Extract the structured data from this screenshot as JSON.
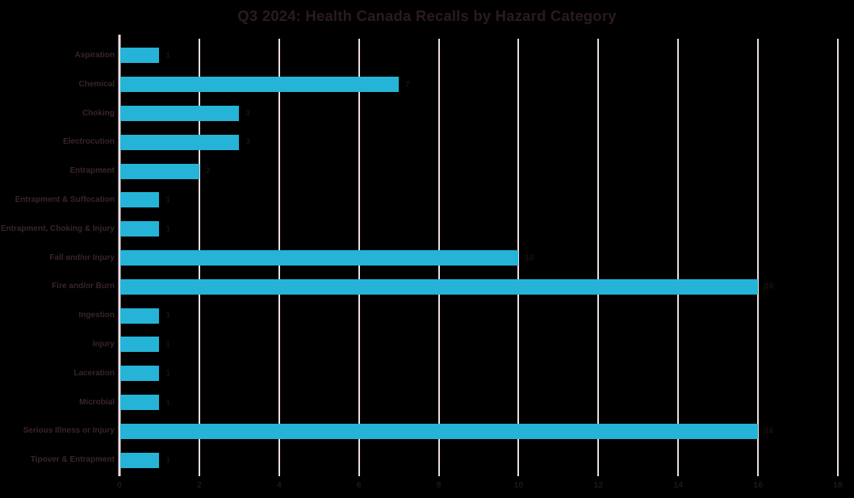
{
  "chart_data": {
    "type": "bar",
    "orientation": "horizontal",
    "title": "Q3 2024: Health Canada Recalls by Hazard Category",
    "categories": [
      "Aspiration",
      "Chemical",
      "Choking",
      "Electrocution",
      "Entrapment",
      "Entrapment & Suffocation",
      "Entrapment, Choking & Injury",
      "Fall and/or Injury",
      "Fire and/or Burn",
      "Ingestion",
      "Injury",
      "Laceration",
      "Microbial",
      "Serious Illness or Injury",
      "Tipover & Entrapment"
    ],
    "values": [
      1,
      7,
      3,
      3,
      2,
      1,
      1,
      10,
      16,
      1,
      1,
      1,
      1,
      16,
      1
    ],
    "data_labels_shown": true,
    "xlabel": "",
    "ylabel": "",
    "xlim": [
      0,
      18
    ],
    "x_ticks": [
      0,
      2,
      4,
      6,
      8,
      10,
      12,
      14,
      16,
      18
    ],
    "grid": true,
    "legend": "none"
  },
  "colors": {
    "background": "#000000",
    "bar": "#25b4d7",
    "gridline": "#eadce2",
    "axis_line": "#eddfe4",
    "title_text": "#2b1a22",
    "category_text": "#3a232b",
    "value_text": "#1a1014",
    "tick_text": "#20151b"
  }
}
